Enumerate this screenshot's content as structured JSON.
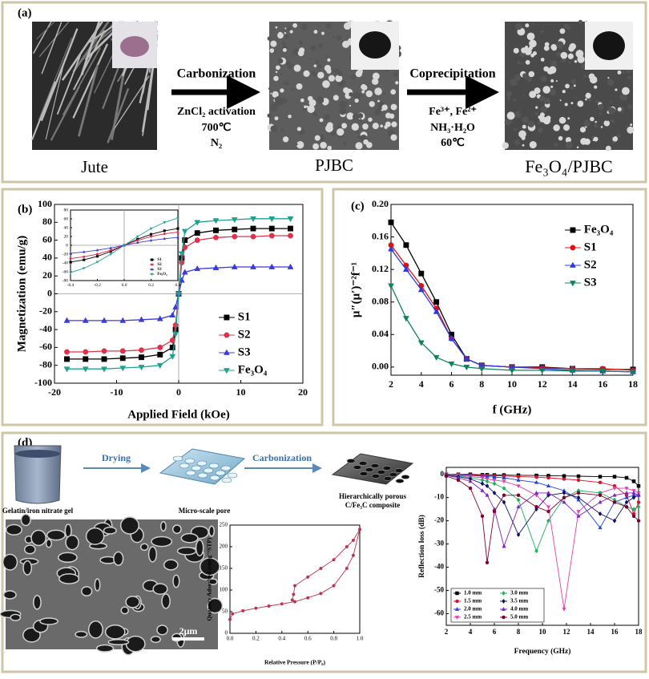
{
  "figure": {
    "labels": {
      "a": "(a)",
      "b": "(b)",
      "c": "(c)",
      "d": "(d)"
    },
    "panel_a": {
      "jute": "Jute",
      "step1": "Carbonization",
      "cond1": [
        "ZnCl₂ activation",
        "700℃",
        "N₂"
      ],
      "pjbc": "PJBC",
      "step2": "Coprecipitation",
      "cond2": [
        "Fe³⁺, Fe²⁺",
        "NH₃·H₂O",
        "60℃"
      ],
      "product": "Fe₃O₄/PJBC"
    },
    "panel_d": {
      "step1": "Drying",
      "step2": "Carbonization",
      "gel": "Gelatin/iron nitrate gel",
      "pore": "Micro-scale pore",
      "product": [
        "Hierarchically porous",
        "C/Fe₃C composite"
      ],
      "scale_bar": "2μm"
    }
  },
  "chart_data": [
    {
      "type": "line",
      "xlabel": "Applied Field (kOe)",
      "ylabel": "Magnetization (emu/g)",
      "xlim": [
        -20,
        20
      ],
      "xticks": [
        -20,
        -10,
        0,
        10,
        20
      ],
      "ylim": [
        -100,
        100
      ],
      "yticks": [
        -100,
        -80,
        -60,
        -40,
        -20,
        0,
        20,
        40,
        60,
        80,
        100
      ],
      "zero_lines": true,
      "legend": "lower right",
      "x": [
        -18,
        -15,
        -12,
        -9,
        -6,
        -3,
        -1,
        -0.5,
        0,
        0.5,
        1,
        3,
        6,
        9,
        12,
        15,
        18
      ],
      "series": [
        {
          "name": "S1",
          "color": "#000000",
          "marker": "square",
          "values": [
            -73,
            -73,
            -73,
            -72,
            -71,
            -68,
            -60,
            -40,
            0,
            40,
            60,
            68,
            71,
            72,
            73,
            73,
            73
          ]
        },
        {
          "name": "S2",
          "color": "#e0304a",
          "marker": "circle",
          "values": [
            -65,
            -65,
            -64,
            -64,
            -63,
            -60,
            -52,
            -35,
            0,
            35,
            52,
            60,
            63,
            64,
            64,
            65,
            65
          ]
        },
        {
          "name": "S3",
          "color": "#3b3bd8",
          "marker": "triangle",
          "values": [
            -30,
            -30,
            -30,
            -30,
            -29,
            -28,
            -24,
            -15,
            0,
            15,
            24,
            28,
            29,
            30,
            30,
            30,
            30
          ]
        },
        {
          "name": "Fe₃O₄",
          "color": "#20a090",
          "marker": "triangle-down",
          "values": [
            -84,
            -84,
            -84,
            -83,
            -82,
            -80,
            -70,
            -45,
            0,
            45,
            70,
            80,
            82,
            83,
            84,
            84,
            84
          ]
        }
      ]
    },
    {
      "type": "line",
      "xlim": [
        -0.4,
        0.4
      ],
      "xticks": [
        -0.4,
        -0.2,
        {
          "value": 0,
          "label": "0.0"
        },
        0.2,
        0.4
      ],
      "ylim": [
        -80,
        80
      ],
      "yticks": [
        -80,
        -60,
        -40,
        -20,
        0,
        20,
        40,
        60,
        80
      ],
      "zero_lines": true,
      "legend": "lower right",
      "x": [
        -0.4,
        -0.3,
        -0.2,
        -0.1,
        0,
        0.1,
        0.2,
        0.3,
        0.4
      ],
      "series": [
        {
          "name": "S1",
          "color": "#000000",
          "marker": "square",
          "values": [
            -38,
            -33,
            -25,
            -14,
            0,
            14,
            25,
            33,
            38
          ]
        },
        {
          "name": "S2",
          "color": "#e0304a",
          "marker": "circle",
          "values": [
            -30,
            -26,
            -20,
            -11,
            0,
            11,
            20,
            26,
            30
          ]
        },
        {
          "name": "S3",
          "color": "#3b3bd8",
          "marker": "triangle",
          "values": [
            -18,
            -15,
            -11,
            -6,
            0,
            6,
            11,
            15,
            18
          ]
        },
        {
          "name": "Fe₃O₄",
          "color": "#20a090",
          "marker": "triangle-down",
          "values": [
            -62,
            -52,
            -38,
            -20,
            0,
            20,
            38,
            52,
            62
          ]
        }
      ]
    },
    {
      "type": "line",
      "xlabel": "f (GHz)",
      "ylabel": "μ″(μ′)⁻²f⁻¹",
      "xlim": [
        2,
        18
      ],
      "xticks": [
        2,
        4,
        6,
        8,
        10,
        12,
        14,
        16,
        18
      ],
      "ylim": [
        -0.01,
        0.2
      ],
      "yticks": [
        {
          "value": 0,
          "label": "0.00"
        },
        {
          "value": 0.04,
          "label": "0.04"
        },
        {
          "value": 0.08,
          "label": "0.08"
        },
        {
          "value": 0.12,
          "label": "0.12"
        },
        {
          "value": 0.16,
          "label": "0.16"
        },
        {
          "value": 0.2,
          "label": "0.20"
        }
      ],
      "legend": "upper right",
      "x": [
        2,
        3,
        4,
        5,
        6,
        7,
        8,
        10,
        12,
        14,
        16,
        18
      ],
      "series": [
        {
          "name": "Fe₃O₄",
          "color": "#000000",
          "marker": "square",
          "values": [
            0.178,
            0.15,
            0.115,
            0.08,
            0.04,
            0.01,
            0.002,
            0,
            0,
            -0.002,
            -0.003,
            -0.003
          ]
        },
        {
          "name": "S1",
          "color": "#e01010",
          "marker": "circle",
          "values": [
            0.15,
            0.125,
            0.1,
            0.072,
            0.035,
            0.01,
            0.002,
            0,
            -0.001,
            -0.002,
            -0.002,
            -0.004
          ]
        },
        {
          "name": "S2",
          "color": "#2a3ce0",
          "marker": "triangle",
          "values": [
            0.145,
            0.12,
            0.095,
            0.068,
            0.035,
            0.01,
            0.002,
            0,
            -0.002,
            -0.004,
            -0.005,
            -0.006
          ]
        },
        {
          "name": "S3",
          "color": "#108060",
          "marker": "triangle-down",
          "values": [
            0.1,
            0.06,
            0.03,
            0.012,
            0.004,
            0,
            -0.002,
            -0.004,
            -0.004,
            -0.005,
            -0.005,
            -0.006
          ]
        }
      ]
    },
    {
      "type": "line",
      "xlabel": "Relative Pressure (P/P₀)",
      "ylabel": "Quantity Adsorbed (cm³g⁻¹STP)",
      "xlim": [
        0,
        1
      ],
      "xticks": [
        {
          "value": 0,
          "label": "0.0"
        },
        0.2,
        0.4,
        0.6,
        0.8,
        {
          "value": 1,
          "label": "1.0"
        }
      ],
      "ylim": [
        0,
        250
      ],
      "yticks": [
        0,
        50,
        100,
        150,
        200,
        250
      ],
      "series": [
        {
          "color": "#c03050",
          "marker": "circle",
          "x": [
            0,
            0.02,
            0.1,
            0.2,
            0.3,
            0.4,
            0.5,
            0.6,
            0.7,
            0.8,
            0.9,
            0.95,
            1
          ],
          "values": [
            32,
            45,
            52,
            58,
            63,
            68,
            73,
            82,
            92,
            110,
            150,
            180,
            240
          ]
        },
        {
          "color": "#c03050",
          "marker": "circle",
          "x": [
            1,
            0.95,
            0.9,
            0.8,
            0.7,
            0.6,
            0.5,
            0.49,
            0.48
          ],
          "values": [
            240,
            215,
            200,
            170,
            150,
            130,
            110,
            90,
            77
          ]
        }
      ]
    },
    {
      "type": "line",
      "xlabel": "Frequency (GHz)",
      "ylabel": "Reflection loss (dB)",
      "xlim": [
        2,
        18
      ],
      "xticks": [
        2,
        4,
        6,
        8,
        10,
        12,
        14,
        16,
        18
      ],
      "ylim": [
        -65,
        3
      ],
      "yticks": [
        -60,
        -50,
        -40,
        -30,
        -20,
        -10,
        0
      ],
      "legend": "lower left",
      "legend_columns": 2,
      "legend_frame": true,
      "x": [
        2,
        3,
        4,
        5,
        5.4,
        6,
        6.8,
        8,
        9.5,
        10.5,
        11.8,
        13,
        14.8,
        16,
        17,
        17.6,
        18
      ],
      "series": [
        {
          "name": "1.0 mm",
          "color": "#000000",
          "marker": "square",
          "values": [
            0,
            0,
            0,
            -0.2,
            -0.2,
            -0.3,
            -0.3,
            -0.4,
            -0.5,
            -0.6,
            -0.7,
            -0.8,
            -1,
            -1,
            -1.5,
            -3,
            -5
          ]
        },
        {
          "name": "1.5 mm",
          "color": "#e01030",
          "marker": "circle",
          "values": [
            0,
            0,
            -0.3,
            -0.4,
            -0.5,
            -0.6,
            -0.7,
            -1,
            -1.2,
            -1.5,
            -2,
            -2.5,
            -3.5,
            -5,
            -9,
            -17,
            -12
          ]
        },
        {
          "name": "2.0 mm",
          "color": "#2040e0",
          "marker": "triangle",
          "values": [
            0,
            -0.3,
            -0.5,
            -0.8,
            -1,
            -1.2,
            -1.5,
            -2.5,
            -3.5,
            -5,
            -7,
            -11,
            -23,
            -12,
            -10,
            -9,
            -9
          ]
        },
        {
          "name": "2.5 mm",
          "color": "#e040b0",
          "marker": "triangle-down",
          "values": [
            0,
            -0.5,
            -1,
            -1.5,
            -2,
            -2.5,
            -3,
            -5,
            -9,
            -14,
            -58,
            -16,
            -8,
            -6,
            -6,
            -7,
            -8
          ]
        },
        {
          "name": "3.0 mm",
          "color": "#20b060",
          "marker": "diamond",
          "values": [
            -0.2,
            -0.7,
            -1.5,
            -2.5,
            -3,
            -4,
            -6,
            -11,
            -33,
            -20,
            -10,
            -7,
            -8,
            -11,
            -14,
            -15,
            -14
          ]
        },
        {
          "name": "3.5 mm",
          "color": "#101060",
          "marker": "diamond",
          "values": [
            -0.3,
            -1,
            -2,
            -4,
            -5,
            -8,
            -12,
            -26,
            -15,
            -9,
            -8,
            -10,
            -17,
            -20,
            -12,
            -10,
            -9
          ]
        },
        {
          "name": "4.0 mm",
          "color": "#8020c0",
          "marker": "triangle",
          "values": [
            -0.5,
            -1.5,
            -3,
            -7,
            -9,
            -15,
            -31,
            -14,
            -8,
            -8,
            -12,
            -18,
            -12,
            -9,
            -8,
            -8,
            -9
          ]
        },
        {
          "name": "5.0 mm",
          "color": "#800030",
          "marker": "circle",
          "values": [
            -0.8,
            -2.5,
            -6,
            -18,
            -38,
            -16,
            -9,
            -9,
            -14,
            -16,
            -10,
            -8,
            -9,
            -12,
            -14,
            -18,
            -20
          ]
        }
      ]
    }
  ]
}
